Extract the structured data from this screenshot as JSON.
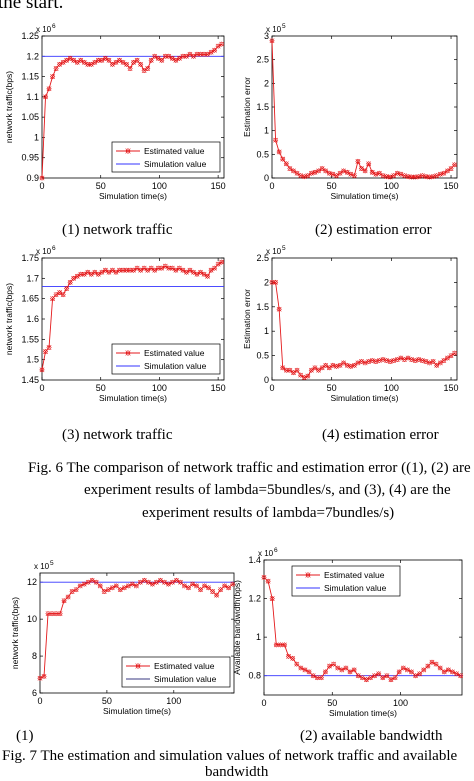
{
  "header_fragment": "the start.",
  "fig6": {
    "caption_lines": [
      "Fig. 6 The comparison of network traffic and estimation error ((1), (2) are",
      "experiment results of lambda=5bundles/s, and (3), (4) are the",
      "experiment results of lambda=7bundles/s)"
    ],
    "subcaptions": [
      "(1) network traffic",
      "(2) estimation error",
      "(3) network traffic",
      "(4) estimation error"
    ]
  },
  "fig7": {
    "caption_lines": [
      "Fig. 7 The estimation and simulation values of network traffic and available",
      "bandwidth"
    ],
    "subcaptions": [
      "(1)",
      "(2) available bandwidth"
    ]
  },
  "colors": {
    "estimated": "#e41a1c",
    "simulation": "#3333ff",
    "simulation_dark": "#3a3a80"
  },
  "chart_data": [
    {
      "id": "c1",
      "type": "line",
      "xlabel": "Simulation time(s)",
      "ylabel": "network traffic(bps)",
      "exponent": "x 10",
      "exp_power": "6",
      "xlim": [
        0,
        155
      ],
      "ylim": [
        0.9,
        1.25
      ],
      "xticks": [
        0,
        50,
        100,
        150
      ],
      "xticklabels": [
        "0",
        "50",
        "100",
        "150"
      ],
      "yticks": [
        0.9,
        0.95,
        1.0,
        1.05,
        1.1,
        1.15,
        1.2,
        1.25
      ],
      "yticklabels": [
        "0.9",
        "0.95",
        "1",
        "1.05",
        "1.1",
        "1.15",
        "1.2",
        "1.25"
      ],
      "legend": [
        "Estimated value",
        "Simulation value"
      ],
      "legend_position": "lower-right",
      "reference": 1.2,
      "x": [
        0,
        3,
        6,
        9,
        12,
        15,
        18,
        21,
        24,
        27,
        30,
        33,
        36,
        39,
        42,
        45,
        48,
        51,
        54,
        57,
        60,
        63,
        66,
        69,
        72,
        75,
        78,
        81,
        84,
        87,
        90,
        93,
        96,
        99,
        102,
        105,
        108,
        111,
        114,
        117,
        120,
        123,
        126,
        129,
        132,
        135,
        138,
        141,
        144,
        147,
        150,
        153
      ],
      "values": [
        0.9,
        1.1,
        1.12,
        1.15,
        1.17,
        1.18,
        1.185,
        1.19,
        1.195,
        1.19,
        1.185,
        1.19,
        1.185,
        1.18,
        1.18,
        1.185,
        1.19,
        1.19,
        1.195,
        1.19,
        1.18,
        1.185,
        1.19,
        1.185,
        1.18,
        1.17,
        1.185,
        1.19,
        1.18,
        1.165,
        1.17,
        1.19,
        1.2,
        1.195,
        1.19,
        1.2,
        1.2,
        1.195,
        1.19,
        1.195,
        1.2,
        1.2,
        1.205,
        1.2,
        1.205,
        1.205,
        1.205,
        1.205,
        1.21,
        1.215,
        1.225,
        1.23
      ]
    },
    {
      "id": "c2",
      "type": "line",
      "xlabel": "Simulation time(s)",
      "ylabel": "Estimation error",
      "exponent": "x 10",
      "exp_power": "5",
      "xlim": [
        0,
        155
      ],
      "ylim": [
        0,
        3
      ],
      "xticks": [
        0,
        50,
        100,
        150
      ],
      "xticklabels": [
        "0",
        "50",
        "100",
        "150"
      ],
      "yticks": [
        0,
        0.5,
        1,
        1.5,
        2,
        2.5,
        3
      ],
      "yticklabels": [
        "0",
        "0.5",
        "1",
        "1.5",
        "2",
        "2.5",
        "3"
      ],
      "x": [
        0,
        3,
        6,
        9,
        12,
        15,
        18,
        21,
        24,
        27,
        30,
        33,
        36,
        39,
        42,
        45,
        48,
        51,
        54,
        57,
        60,
        63,
        66,
        69,
        72,
        75,
        78,
        81,
        84,
        87,
        90,
        93,
        96,
        99,
        102,
        105,
        108,
        111,
        114,
        117,
        120,
        123,
        126,
        129,
        132,
        135,
        138,
        141,
        144,
        147,
        150,
        153
      ],
      "values": [
        2.9,
        0.8,
        0.55,
        0.4,
        0.3,
        0.2,
        0.15,
        0.1,
        0.05,
        0.03,
        0.05,
        0.1,
        0.12,
        0.15,
        0.2,
        0.15,
        0.1,
        0.08,
        0.05,
        0.1,
        0.15,
        0.12,
        0.08,
        0.05,
        0.35,
        0.2,
        0.15,
        0.3,
        0.12,
        0.08,
        0.1,
        0.05,
        0.03,
        0.02,
        0.05,
        0.1,
        0.08,
        0.05,
        0.03,
        0.02,
        0.02,
        0.03,
        0.05,
        0.03,
        0.02,
        0.03,
        0.05,
        0.08,
        0.1,
        0.15,
        0.2,
        0.28
      ]
    },
    {
      "id": "c3",
      "type": "line",
      "xlabel": "Simulation time(s)",
      "ylabel": "network traffic(bps)",
      "exponent": "x 10",
      "exp_power": "6",
      "xlim": [
        0,
        155
      ],
      "ylim": [
        1.45,
        1.75
      ],
      "xticks": [
        0,
        50,
        100,
        150
      ],
      "xticklabels": [
        "0",
        "50",
        "100",
        "150"
      ],
      "yticks": [
        1.45,
        1.5,
        1.55,
        1.6,
        1.65,
        1.7,
        1.75
      ],
      "yticklabels": [
        "1.45",
        "1.5",
        "1.55",
        "1.6",
        "1.65",
        "1.7",
        "1.75"
      ],
      "legend": [
        "Estimated value",
        "Simulation value"
      ],
      "legend_position": "lower-right",
      "reference": 1.68,
      "x": [
        0,
        3,
        6,
        9,
        12,
        15,
        18,
        21,
        24,
        27,
        30,
        33,
        36,
        39,
        42,
        45,
        48,
        51,
        54,
        57,
        60,
        63,
        66,
        69,
        72,
        75,
        78,
        81,
        84,
        87,
        90,
        93,
        96,
        99,
        102,
        105,
        108,
        111,
        114,
        117,
        120,
        123,
        126,
        129,
        132,
        135,
        138,
        141,
        144,
        147,
        150,
        153
      ],
      "values": [
        1.475,
        1.52,
        1.53,
        1.65,
        1.66,
        1.665,
        1.66,
        1.675,
        1.69,
        1.7,
        1.705,
        1.71,
        1.71,
        1.715,
        1.71,
        1.715,
        1.71,
        1.715,
        1.72,
        1.715,
        1.72,
        1.715,
        1.72,
        1.72,
        1.72,
        1.72,
        1.72,
        1.725,
        1.72,
        1.725,
        1.72,
        1.725,
        1.72,
        1.725,
        1.725,
        1.73,
        1.725,
        1.725,
        1.72,
        1.725,
        1.72,
        1.715,
        1.72,
        1.715,
        1.71,
        1.715,
        1.71,
        1.705,
        1.72,
        1.725,
        1.735,
        1.74
      ]
    },
    {
      "id": "c4",
      "type": "line",
      "xlabel": "Simulation time(s)",
      "ylabel": "Estimation error",
      "exponent": "x 10",
      "exp_power": "5",
      "xlim": [
        0,
        155
      ],
      "ylim": [
        0,
        2.5
      ],
      "xticks": [
        0,
        50,
        100,
        150
      ],
      "xticklabels": [
        "0",
        "50",
        "100",
        "150"
      ],
      "yticks": [
        0,
        0.5,
        1,
        1.5,
        2,
        2.5
      ],
      "yticklabels": [
        "0",
        "0.5",
        "1",
        "1.5",
        "2",
        "2.5"
      ],
      "x": [
        0,
        3,
        6,
        9,
        12,
        15,
        18,
        21,
        24,
        27,
        30,
        33,
        36,
        39,
        42,
        45,
        48,
        51,
        54,
        57,
        60,
        63,
        66,
        69,
        72,
        75,
        78,
        81,
        84,
        87,
        90,
        93,
        96,
        99,
        102,
        105,
        108,
        111,
        114,
        117,
        120,
        123,
        126,
        129,
        132,
        135,
        138,
        141,
        144,
        147,
        150,
        153
      ],
      "values": [
        2.0,
        2.0,
        1.45,
        0.25,
        0.2,
        0.2,
        0.15,
        0.2,
        0.1,
        0.05,
        0.08,
        0.2,
        0.25,
        0.2,
        0.25,
        0.3,
        0.25,
        0.3,
        0.28,
        0.3,
        0.35,
        0.3,
        0.28,
        0.3,
        0.35,
        0.38,
        0.35,
        0.38,
        0.4,
        0.38,
        0.4,
        0.42,
        0.4,
        0.38,
        0.4,
        0.42,
        0.45,
        0.42,
        0.45,
        0.42,
        0.4,
        0.42,
        0.4,
        0.38,
        0.35,
        0.38,
        0.3,
        0.35,
        0.4,
        0.45,
        0.5,
        0.55
      ]
    },
    {
      "id": "c5",
      "type": "line",
      "xlabel": "Simulation time(s)",
      "ylabel": "network traffic(bps)",
      "exponent": "x 10",
      "exp_power": "5",
      "xlim": [
        0,
        145
      ],
      "ylim": [
        6,
        12.5
      ],
      "xticks": [
        0,
        50,
        100
      ],
      "xticklabels": [
        "0",
        "50",
        "100"
      ],
      "yticks": [
        6,
        8,
        10,
        12
      ],
      "yticklabels": [
        "6",
        "8",
        "10",
        "12"
      ],
      "legend": [
        "Estimated value",
        "Simulation value"
      ],
      "legend_position": "lower-right",
      "reference": 12,
      "x": [
        0,
        3,
        6,
        9,
        12,
        15,
        18,
        21,
        24,
        27,
        30,
        33,
        36,
        39,
        42,
        45,
        48,
        51,
        54,
        57,
        60,
        63,
        66,
        69,
        72,
        75,
        78,
        81,
        84,
        87,
        90,
        93,
        96,
        99,
        102,
        105,
        108,
        111,
        114,
        117,
        120,
        123,
        126,
        129,
        132,
        135,
        138,
        141,
        144
      ],
      "values": [
        6.8,
        6.9,
        10.3,
        10.3,
        10.3,
        10.3,
        11,
        11.2,
        11.5,
        11.6,
        11.8,
        11.9,
        12,
        12.1,
        12,
        11.8,
        11.5,
        11.6,
        11.7,
        11.8,
        11.6,
        11.7,
        11.8,
        11.9,
        11.8,
        12,
        12.1,
        12,
        11.9,
        12,
        12.1,
        12,
        11.9,
        12,
        12.1,
        12,
        11.8,
        11.7,
        11.9,
        11.8,
        11.6,
        11.8,
        11.7,
        11.5,
        11.3,
        11.6,
        11.8,
        11.7,
        11.9
      ]
    },
    {
      "id": "c6",
      "type": "line",
      "xlabel": "Simulation time(s)",
      "ylabel": "Available bandwidth(bps)",
      "exponent": "x 10",
      "exp_power": "6",
      "xlim": [
        0,
        145
      ],
      "ylim": [
        0.7,
        1.4
      ],
      "xticks": [
        0,
        50,
        100
      ],
      "xticklabels": [
        "0",
        "50",
        "100"
      ],
      "yticks": [
        0.8,
        1.0,
        1.2,
        1.4
      ],
      "yticklabels": [
        "0.8",
        "1",
        "1.2",
        "1.4"
      ],
      "legend": [
        "Estimated value",
        "Simulation value"
      ],
      "legend_position": "upper-right",
      "reference": 0.8,
      "x": [
        0,
        3,
        6,
        9,
        12,
        15,
        18,
        21,
        24,
        27,
        30,
        33,
        36,
        39,
        42,
        45,
        48,
        51,
        54,
        57,
        60,
        63,
        66,
        69,
        72,
        75,
        78,
        81,
        84,
        87,
        90,
        93,
        96,
        99,
        102,
        105,
        108,
        111,
        114,
        117,
        120,
        123,
        126,
        129,
        132,
        135,
        138,
        141,
        144
      ],
      "values": [
        1.31,
        1.29,
        1.2,
        0.96,
        0.96,
        0.96,
        0.9,
        0.89,
        0.86,
        0.84,
        0.83,
        0.82,
        0.8,
        0.79,
        0.79,
        0.82,
        0.85,
        0.86,
        0.84,
        0.83,
        0.84,
        0.82,
        0.83,
        0.8,
        0.79,
        0.78,
        0.79,
        0.8,
        0.81,
        0.79,
        0.8,
        0.78,
        0.79,
        0.82,
        0.84,
        0.83,
        0.82,
        0.8,
        0.81,
        0.83,
        0.85,
        0.87,
        0.86,
        0.84,
        0.82,
        0.83,
        0.82,
        0.81,
        0.8
      ]
    }
  ]
}
